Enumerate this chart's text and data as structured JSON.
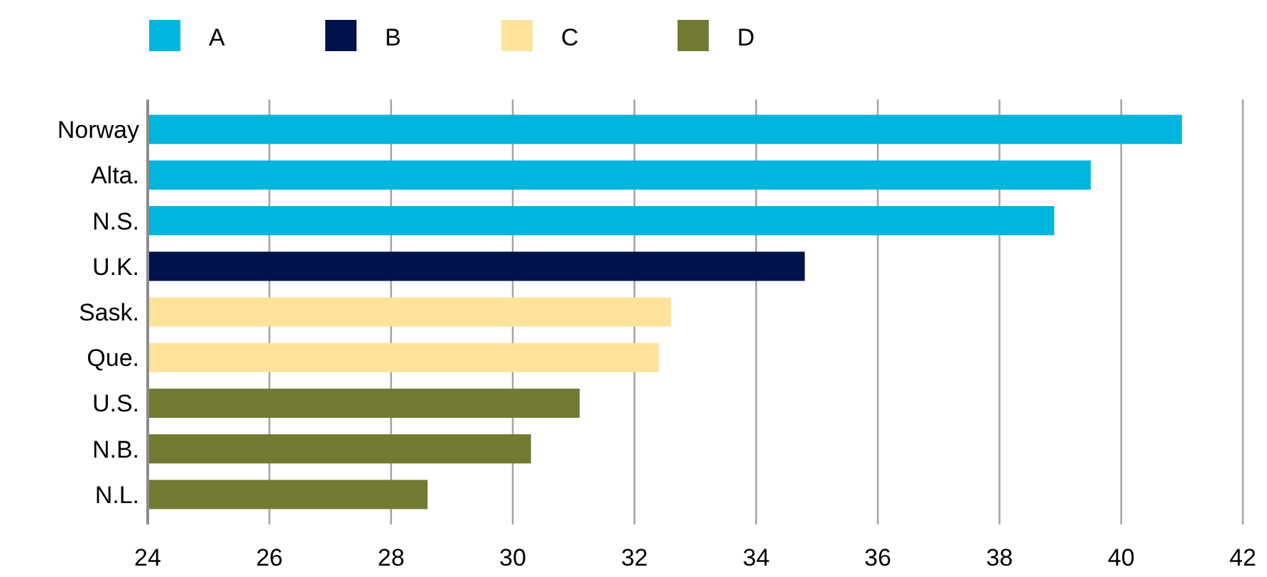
{
  "chart_data": {
    "type": "bar",
    "orientation": "horizontal",
    "categories": [
      "Norway",
      "Alta.",
      "N.S.",
      "U.K.",
      "Sask.",
      "Que.",
      "U.S.",
      "N.B.",
      "N.L."
    ],
    "series": [
      {
        "name": "A",
        "color": "#00b5de",
        "values": [
          41.0,
          39.5,
          38.9,
          null,
          null,
          null,
          null,
          null,
          null
        ]
      },
      {
        "name": "B",
        "color": "#00124a",
        "values": [
          null,
          null,
          null,
          34.8,
          null,
          null,
          null,
          null,
          null
        ]
      },
      {
        "name": "C",
        "color": "#fee39c",
        "values": [
          null,
          null,
          null,
          null,
          32.6,
          32.4,
          null,
          null,
          null
        ]
      },
      {
        "name": "D",
        "color": "#727a34",
        "values": [
          null,
          null,
          null,
          null,
          null,
          null,
          31.1,
          30.3,
          28.6
        ]
      }
    ],
    "xlim": [
      24,
      42
    ],
    "xticks": [
      24,
      26,
      28,
      30,
      32,
      34,
      36,
      38,
      40,
      42
    ],
    "grid": "x",
    "legend": "top left"
  }
}
